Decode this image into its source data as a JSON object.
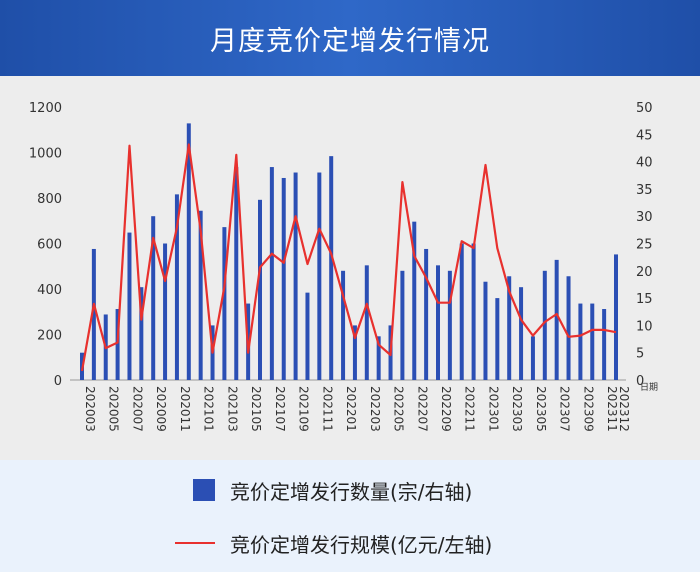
{
  "header": {
    "title": "月度竞价定增发行情况"
  },
  "legend": {
    "bar_label": "竞价定增发行数量(宗/右轴)",
    "line_label": "竞价定增发行规模(亿元/左轴)"
  },
  "colors": {
    "header_bg": "#2658b8",
    "bar": "#2b4fb4",
    "line": "#e8312e",
    "chart_bg": "#ededed",
    "legend_bg": "#eaf2fc"
  },
  "chart_data": {
    "type": "bar",
    "categories": [
      "202003",
      "202004",
      "202005",
      "202006",
      "202007",
      "202008",
      "202009",
      "202010",
      "202011",
      "202012",
      "202101",
      "202102",
      "202103",
      "202104",
      "202105",
      "202106",
      "202107",
      "202108",
      "202109",
      "202110",
      "202111",
      "202112",
      "202201",
      "202202",
      "202203",
      "202204",
      "202205",
      "202206",
      "202207",
      "202208",
      "202209",
      "202210",
      "202211",
      "202212",
      "202301",
      "202302",
      "202303",
      "202304",
      "202305",
      "202306",
      "202307",
      "202308",
      "202309",
      "202310",
      "202311",
      "202312"
    ],
    "x_tick_labels": [
      "202003",
      "202005",
      "202007",
      "202009",
      "202011",
      "202101",
      "202103",
      "202105",
      "202107",
      "202109",
      "202111",
      "202201",
      "202203",
      "202205",
      "202207",
      "202209",
      "202211",
      "202301",
      "202303",
      "202305",
      "202307",
      "202309",
      "202311",
      "202312"
    ],
    "x_unit_label": "日期",
    "series": [
      {
        "name": "竞价定增发行数量(宗/右轴)",
        "type": "bar",
        "axis": "right",
        "values": [
          5,
          24,
          12,
          13,
          27,
          17,
          30,
          25,
          34,
          47,
          31,
          10,
          28,
          39,
          14,
          33,
          39,
          37,
          38,
          16,
          38,
          41,
          20,
          10,
          21,
          8,
          10,
          20,
          29,
          24,
          21,
          20,
          25,
          25,
          18,
          15,
          19,
          17,
          8,
          20,
          22,
          19,
          14,
          14,
          13,
          23
        ]
      },
      {
        "name": "竞价定增发行规模(亿元/左轴)",
        "type": "line",
        "axis": "left",
        "values": [
          40,
          335,
          140,
          165,
          1030,
          265,
          625,
          435,
          670,
          1035,
          655,
          120,
          410,
          990,
          120,
          495,
          555,
          515,
          720,
          510,
          665,
          555,
          370,
          185,
          335,
          155,
          110,
          870,
          545,
          450,
          340,
          340,
          610,
          580,
          945,
          580,
          390,
          265,
          195,
          255,
          290,
          190,
          195,
          220,
          220,
          210
        ]
      }
    ],
    "y_left": {
      "min": 0,
      "max": 1200,
      "ticks": [
        0,
        200,
        400,
        600,
        800,
        1000,
        1200
      ]
    },
    "y_right": {
      "min": 0,
      "max": 50,
      "ticks": [
        0,
        5,
        10,
        15,
        20,
        25,
        30,
        35,
        40,
        45,
        50
      ]
    },
    "grid": false
  }
}
